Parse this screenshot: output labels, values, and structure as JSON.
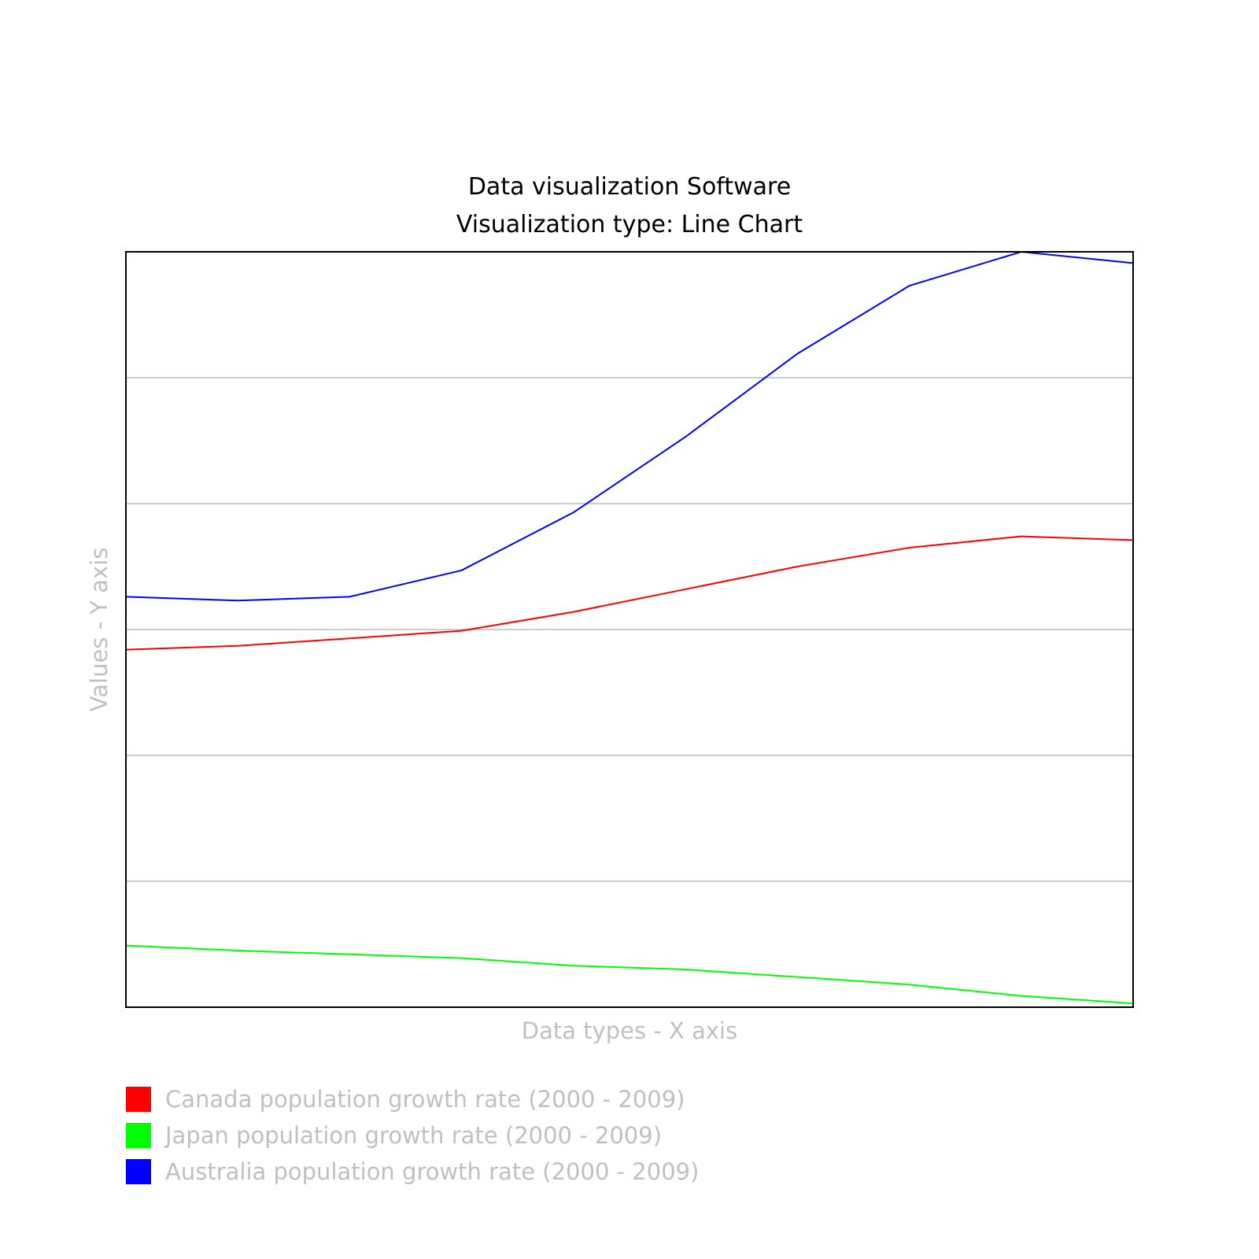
{
  "chart_data": {
    "type": "line",
    "title": "Data visualization Software",
    "subtitle": "Visualization type: Line Chart",
    "xlabel": "Data types - X axis",
    "ylabel": "Values - Y axis",
    "x": [
      0,
      1,
      2,
      3,
      4,
      5,
      6,
      7,
      8,
      9
    ],
    "ylim": [
      0,
      6
    ],
    "grid": true,
    "legend_position": "bottom-left",
    "series": [
      {
        "name": "Canada population growth rate (2000 - 2009)",
        "color": "#ff0000",
        "values": [
          2.84,
          2.87,
          2.93,
          2.99,
          3.14,
          3.32,
          3.5,
          3.65,
          3.74,
          3.71
        ]
      },
      {
        "name": "Japan population growth rate (2000 - 2009)",
        "color": "#00ff00",
        "values": [
          0.49,
          0.45,
          0.42,
          0.39,
          0.33,
          0.3,
          0.24,
          0.18,
          0.09,
          0.03
        ]
      },
      {
        "name": "Australia population growth rate (2000 - 2009)",
        "color": "#0000ff",
        "values": [
          3.26,
          3.23,
          3.26,
          3.47,
          3.93,
          4.53,
          5.19,
          5.73,
          6.0,
          5.91
        ]
      }
    ]
  }
}
